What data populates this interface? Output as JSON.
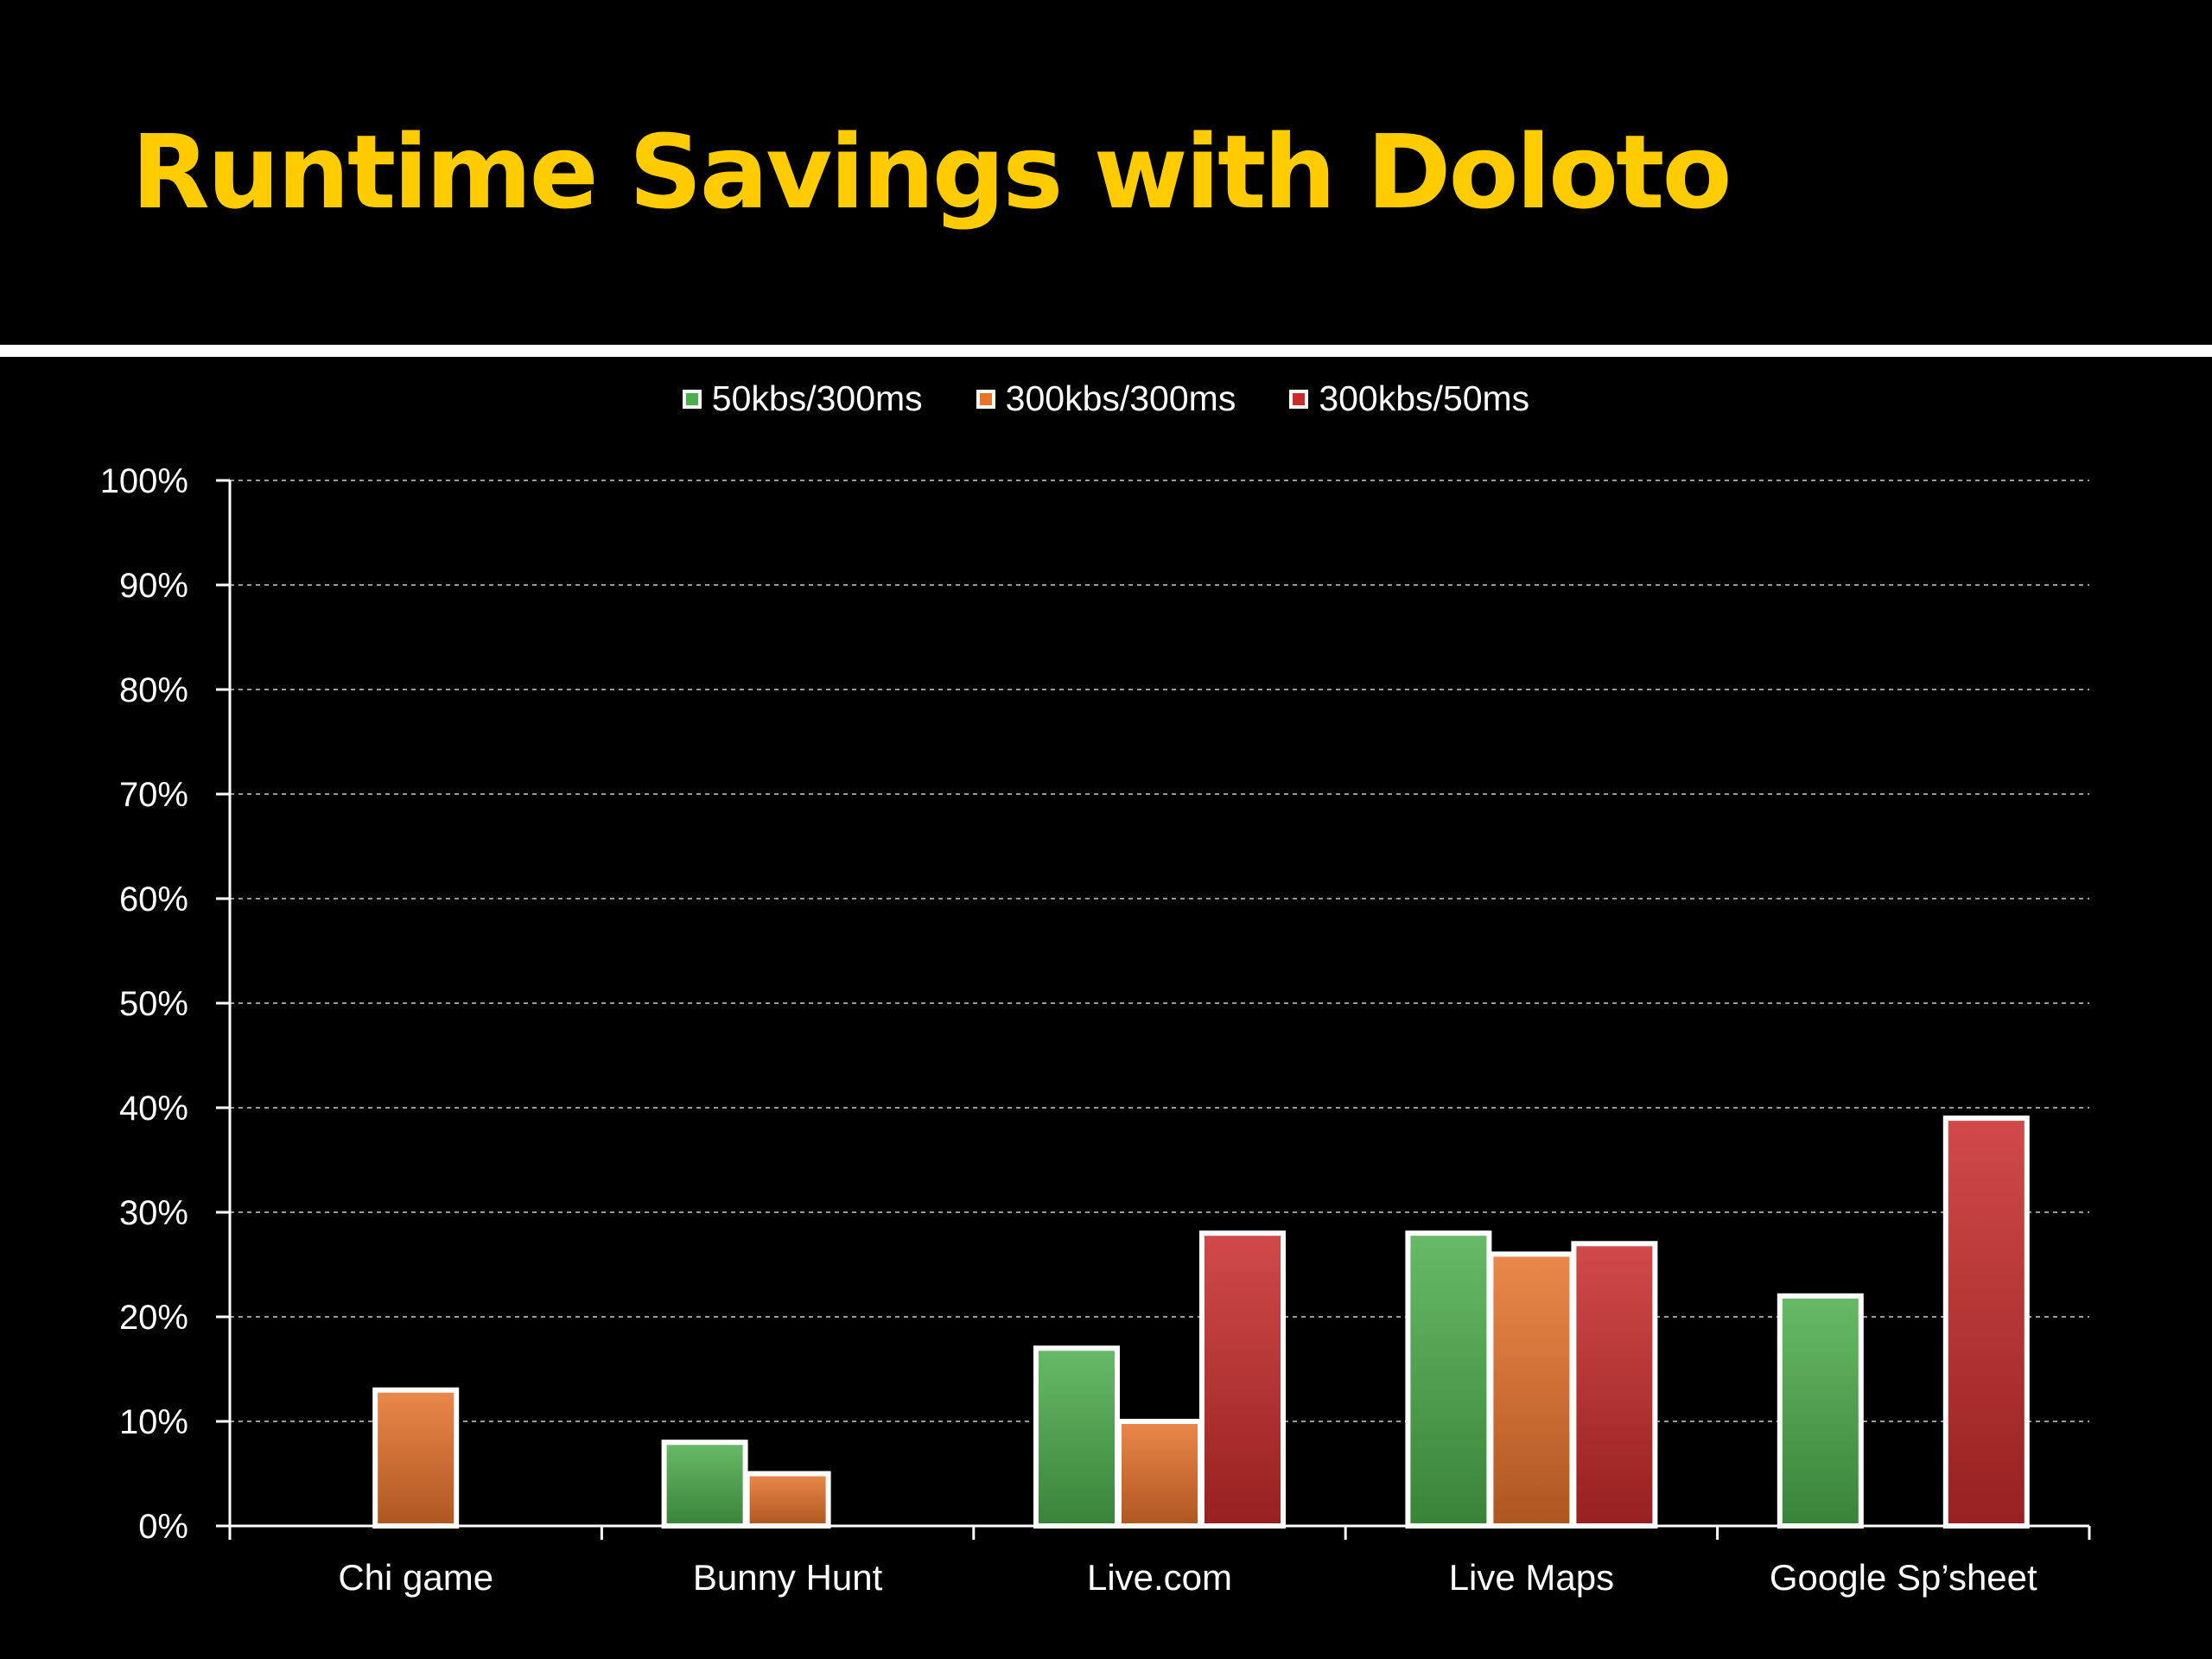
{
  "slide": {
    "title": "Runtime Savings with Doloto",
    "title_color": "#ffcc00",
    "background": "#000000"
  },
  "chart_data": {
    "type": "bar",
    "categories": [
      "Chi game",
      "Bunny Hunt",
      "Live.com",
      "Live Maps",
      "Google Sp’sheet"
    ],
    "series": [
      {
        "name": "50kbs/300ms",
        "color": "#4cae4c",
        "values": [
          0,
          8,
          17,
          28,
          22
        ]
      },
      {
        "name": "300kbs/300ms",
        "color": "#e8732b",
        "values": [
          13,
          5,
          10,
          26,
          0
        ]
      },
      {
        "name": "300kbs/50ms",
        "color": "#c92a2a",
        "values": [
          0,
          0,
          28,
          27,
          39
        ]
      }
    ],
    "ylim": [
      0,
      100
    ],
    "yticks": [
      "0%",
      "10%",
      "20%",
      "30%",
      "40%",
      "50%",
      "60%",
      "70%",
      "80%",
      "90%",
      "100%"
    ],
    "grid": true,
    "legend_position": "top",
    "bar_border_color": "#ffffff"
  }
}
